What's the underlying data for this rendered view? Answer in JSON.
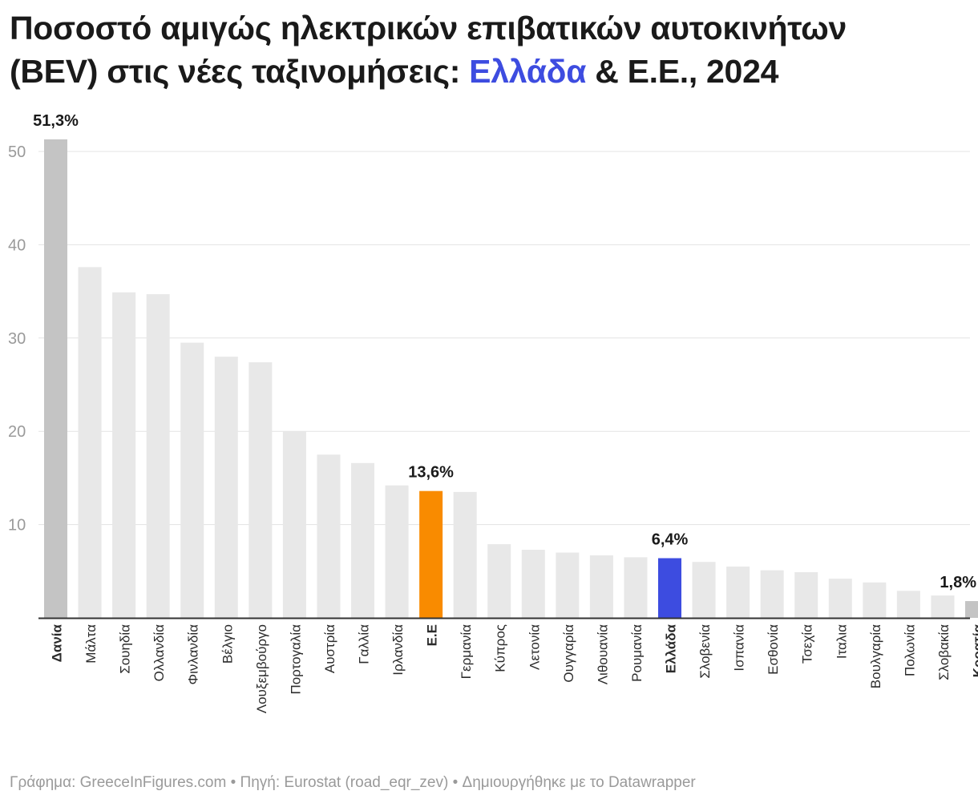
{
  "title": {
    "line1": "Ποσοστό αμιγώς ηλεκτρικών επιβατικών αυτοκινήτων",
    "line2_before": "(BEV) στις νέες ταξινομήσεις: ",
    "line2_highlight": "Ελλάδα",
    "line2_after": " & Ε.Ε., 2024"
  },
  "footer": "Γράφημα: GreeceInFigures.com • Πηγή: Eurostat (road_eqr_zev) • Δημιουργήθηκε με το Datawrapper",
  "colors": {
    "default_bar": "#e8e8e8",
    "extreme_bar": "#c4c4c4",
    "eu_bar": "#f98b00",
    "greece_bar": "#3d4ce0",
    "gridline": "#e3e3e3",
    "axis_tick_text": "#9a9a9a"
  },
  "chart_data": {
    "type": "bar",
    "title": "Ποσοστό αμιγώς ηλεκτρικών επιβατικών αυτοκινήτων (BEV) στις νέες ταξινομήσεις: Ελλάδα & Ε.Ε., 2024",
    "xlabel": "",
    "ylabel": "",
    "ylim": [
      0,
      55
    ],
    "yticks": [
      10,
      20,
      30,
      40,
      50
    ],
    "grid": true,
    "categories": [
      "Δανία",
      "Μάλτα",
      "Σουηδία",
      "Ολλανδία",
      "Φινλανδία",
      "Βέλγιο",
      "Λουξεμβούργο",
      "Πορτογαλία",
      "Αυστρία",
      "Γαλλία",
      "Ιρλανδία",
      "Ε.Ε",
      "Γερμανία",
      "Κύπρος",
      "Λετονία",
      "Ουγγαρία",
      "Λιθουανία",
      "Ρουμανία",
      "Ελλάδα",
      "Σλοβενία",
      "Ισπανία",
      "Εσθονία",
      "Τσεχία",
      "Ιταλια",
      "Βουλγαρία",
      "Πολωνία",
      "Σλοβακία",
      "Κροατία"
    ],
    "values": [
      51.3,
      37.6,
      34.9,
      34.7,
      29.5,
      28.0,
      27.4,
      20.0,
      17.5,
      16.6,
      14.2,
      13.6,
      13.5,
      7.9,
      7.3,
      7.0,
      6.7,
      6.5,
      6.4,
      6.0,
      5.5,
      5.1,
      4.9,
      4.2,
      3.8,
      2.9,
      2.4,
      1.8
    ],
    "bold_categories": [
      "Δανία",
      "Ε.Ε",
      "Ελλάδα",
      "Κροατία"
    ],
    "highlight": {
      "Δανία": "extreme",
      "Ε.Ε": "eu",
      "Ελλάδα": "greece",
      "Κροατία": "extreme"
    },
    "data_labels": [
      {
        "category": "Δανία",
        "text": "51,3%"
      },
      {
        "category": "Ε.Ε",
        "text": "13,6%"
      },
      {
        "category": "Ελλάδα",
        "text": "6,4%"
      },
      {
        "category": "Κροατία",
        "text": "1,8%"
      }
    ]
  }
}
